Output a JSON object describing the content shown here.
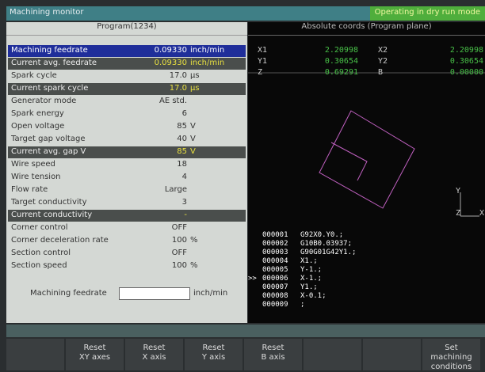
{
  "title_bar": {
    "title": "Machining monitor",
    "mode": "Operating in dry run mode"
  },
  "program_panel": {
    "header": "Program(1234)",
    "rows": [
      {
        "label": "Machining feedrate",
        "value": "0.09330",
        "unit": "inch/min"
      },
      {
        "label": "Current avg. feedrate",
        "value": "0.09330",
        "unit": "inch/min"
      },
      {
        "label": "Spark cycle",
        "value": "17.0",
        "unit": "µs"
      },
      {
        "label": "Current spark cycle",
        "value": "17.0",
        "unit": "µs"
      },
      {
        "label": "Generator mode",
        "value": "AE std."
      },
      {
        "label": "Spark energy",
        "value": "6"
      },
      {
        "label": "Open voltage",
        "value": "85",
        "unit": "V"
      },
      {
        "label": "Target gap voltage",
        "value": "40",
        "unit": "V"
      },
      {
        "label": "Current avg. gap V",
        "value": "85",
        "unit": "V"
      },
      {
        "label": "Wire speed",
        "value": "18"
      },
      {
        "label": "Wire tension",
        "value": "4"
      },
      {
        "label": "Flow rate",
        "value": "Large"
      },
      {
        "label": "Target conductivity",
        "value": "3"
      },
      {
        "label": "Current conductivity",
        "value": "-"
      },
      {
        "label": "Corner control",
        "value": "OFF"
      },
      {
        "label": "Corner deceleration rate",
        "value": "100",
        "unit": "%"
      },
      {
        "label": "Section control",
        "value": "OFF"
      },
      {
        "label": "Section speed",
        "value": "100",
        "unit": "%"
      }
    ],
    "input": {
      "label": "Machining feedrate",
      "unit": "inch/min"
    }
  },
  "coords_panel": {
    "header": "Absolute coords (Program plane)",
    "coords": [
      [
        "X1",
        "2.20998",
        "X2",
        "2.20998"
      ],
      [
        "Y1",
        "0.30654",
        "Y2",
        "0.30654"
      ],
      [
        "Z",
        "0.69291",
        "B",
        "0.00000"
      ]
    ],
    "axis_labels": [
      "Y",
      "Z",
      "X"
    ],
    "program": [
      {
        "line": "000001",
        "code": "G92X0.Y0.;"
      },
      {
        "line": "000002",
        "code": "G10B0.03937;"
      },
      {
        "line": "000003",
        "code": "G90G01G42Y1.;"
      },
      {
        "line": "000004",
        "code": "X1.;"
      },
      {
        "line": "000005",
        "code": "Y-1.;"
      },
      {
        "line": "000006",
        "code": "X-1.;",
        "cursor": ">>"
      },
      {
        "line": "000007",
        "code": "Y1.;"
      },
      {
        "line": "000008",
        "code": "X-0.1;"
      },
      {
        "line": "000009",
        "code": ";"
      }
    ]
  },
  "function_keys": [
    [
      "Reset",
      "XY axes"
    ],
    [
      "Reset",
      "X axis"
    ],
    [
      "Reset",
      "Y axis"
    ],
    [
      "Reset",
      "B axis"
    ],
    [
      "Set",
      "machining",
      "conditions"
    ]
  ]
}
